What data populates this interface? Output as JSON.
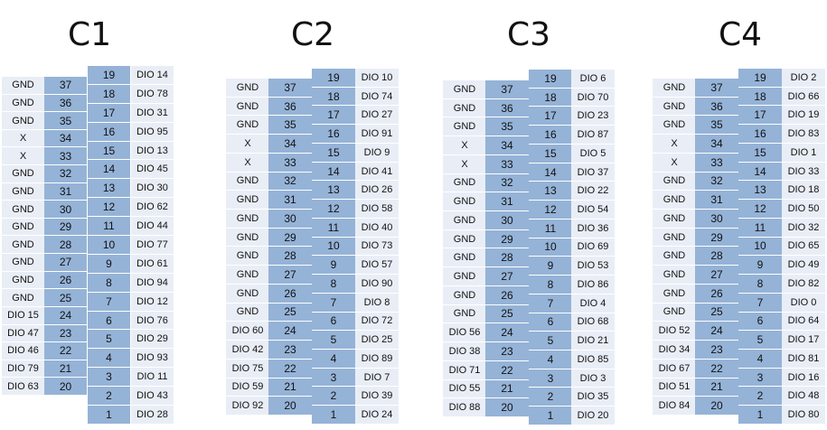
{
  "connectors": [
    {
      "title": "C1",
      "left_pins": [
        "37",
        "36",
        "35",
        "34",
        "33",
        "32",
        "31",
        "30",
        "29",
        "28",
        "27",
        "26",
        "25",
        "24",
        "23",
        "22",
        "21",
        "20"
      ],
      "left_labels": [
        "GND",
        "GND",
        "GND",
        "X",
        "X",
        "GND",
        "GND",
        "GND",
        "GND",
        "GND",
        "GND",
        "GND",
        "GND",
        "DIO 15",
        "DIO 47",
        "DIO 46",
        "DIO 79",
        "DIO 63"
      ],
      "right_pins": [
        "19",
        "18",
        "17",
        "16",
        "15",
        "14",
        "13",
        "12",
        "11",
        "10",
        "9",
        "8",
        "7",
        "6",
        "5",
        "4",
        "3",
        "2",
        "1"
      ],
      "right_labels": [
        "DIO 14",
        "DIO 78",
        "DIO 31",
        "DIO 95",
        "DIO 13",
        "DIO 45",
        "DIO 30",
        "DIO 62",
        "DIO 44",
        "DIO 77",
        "DIO 61",
        "DIO 94",
        "DIO 12",
        "DIO 76",
        "DIO 29",
        "DIO 93",
        "DIO 11",
        "DIO 43",
        "DIO 28"
      ]
    },
    {
      "title": "C2",
      "left_pins": [
        "37",
        "36",
        "35",
        "34",
        "33",
        "32",
        "31",
        "30",
        "29",
        "28",
        "27",
        "26",
        "25",
        "24",
        "23",
        "22",
        "21",
        "20"
      ],
      "left_labels": [
        "GND",
        "GND",
        "GND",
        "X",
        "X",
        "GND",
        "GND",
        "GND",
        "GND",
        "GND",
        "GND",
        "GND",
        "GND",
        "DIO 60",
        "DIO 42",
        "DIO 75",
        "DIO 59",
        "DIO 92"
      ],
      "right_pins": [
        "19",
        "18",
        "17",
        "16",
        "15",
        "14",
        "13",
        "12",
        "11",
        "10",
        "9",
        "8",
        "7",
        "6",
        "5",
        "4",
        "3",
        "2",
        "1"
      ],
      "right_labels": [
        "DIO 10",
        "DIO 74",
        "DIO 27",
        "DIO 91",
        "DIO 9",
        "DIO 41",
        "DIO 26",
        "DIO 58",
        "DIO 40",
        "DIO 73",
        "DIO 57",
        "DIO 90",
        "DIO 8",
        "DIO 72",
        "DIO 25",
        "DIO 89",
        "DIO 7",
        "DIO 39",
        "DIO 24"
      ]
    },
    {
      "title": "C3",
      "left_pins": [
        "37",
        "36",
        "35",
        "34",
        "33",
        "32",
        "31",
        "30",
        "29",
        "28",
        "27",
        "26",
        "25",
        "24",
        "23",
        "22",
        "21",
        "20"
      ],
      "left_labels": [
        "GND",
        "GND",
        "GND",
        "X",
        "X",
        "GND",
        "GND",
        "GND",
        "GND",
        "GND",
        "GND",
        "GND",
        "GND",
        "DIO 56",
        "DIO 38",
        "DIO 71",
        "DIO 55",
        "DIO 88"
      ],
      "right_pins": [
        "19",
        "18",
        "17",
        "16",
        "15",
        "14",
        "13",
        "12",
        "11",
        "10",
        "9",
        "8",
        "7",
        "6",
        "5",
        "4",
        "3",
        "2",
        "1"
      ],
      "right_labels": [
        "DIO 6",
        "DIO 70",
        "DIO 23",
        "DIO 87",
        "DIO 5",
        "DIO 37",
        "DIO 22",
        "DIO 54",
        "DIO 36",
        "DIO 69",
        "DIO 53",
        "DIO 86",
        "DIO 4",
        "DIO 68",
        "DIO 21",
        "DIO 85",
        "DIO 3",
        "DIO 35",
        "DIO 20"
      ]
    },
    {
      "title": "C4",
      "left_pins": [
        "37",
        "36",
        "35",
        "34",
        "33",
        "32",
        "31",
        "30",
        "29",
        "28",
        "27",
        "26",
        "25",
        "24",
        "23",
        "22",
        "21",
        "20"
      ],
      "left_labels": [
        "GND",
        "GND",
        "GND",
        "X",
        "X",
        "GND",
        "GND",
        "GND",
        "GND",
        "GND",
        "GND",
        "GND",
        "GND",
        "DIO 52",
        "DIO 34",
        "DIO 67",
        "DIO 51",
        "DIO 84"
      ],
      "right_pins": [
        "19",
        "18",
        "17",
        "16",
        "15",
        "14",
        "13",
        "12",
        "11",
        "10",
        "9",
        "8",
        "7",
        "6",
        "5",
        "4",
        "3",
        "2",
        "1"
      ],
      "right_labels": [
        "DIO 2",
        "DIO 66",
        "DIO 19",
        "DIO 83",
        "DIO 1",
        "DIO 33",
        "DIO 18",
        "DIO 50",
        "DIO 32",
        "DIO 65",
        "DIO 49",
        "DIO 82",
        "DIO 0",
        "DIO 64",
        "DIO 17",
        "DIO 81",
        "DIO 16",
        "DIO 48",
        "DIO 80"
      ]
    }
  ],
  "colors": {
    "pin_fill": "#95b3d7",
    "label_fill": "#e9eef6"
  }
}
